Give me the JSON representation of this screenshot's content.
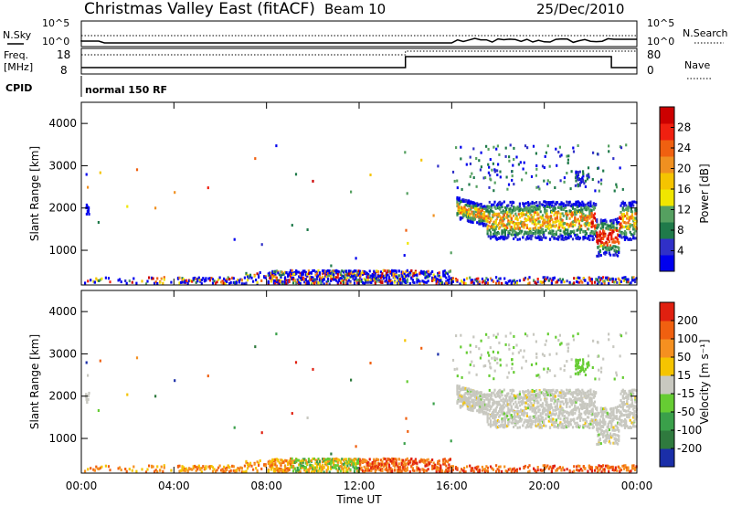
{
  "header": {
    "title": "Christmas Valley East (fitACF)",
    "beam": "Beam 10",
    "date": "25/Dec/2010"
  },
  "top_panels": {
    "nsky_label": "N.Sky",
    "nsky_ticks": [
      "10^5",
      "10^0"
    ],
    "nsearch_label": "N.Search",
    "nsearch_ticks": [
      "10^5",
      "10^0"
    ],
    "freq_label": "Freq.",
    "freq_unit": "[MHz]",
    "freq_ticks": [
      "18",
      "8"
    ],
    "nave_label": "Nave",
    "nave_ticks": [
      "80",
      "0"
    ],
    "cpid_label": "CPID",
    "cpid_value": "normal 150 RF"
  },
  "chart_data": [
    {
      "type": "heatmap",
      "title": "",
      "xlabel": "",
      "ylabel": "Slant Range [km]",
      "x_range_hours": [
        0,
        24
      ],
      "y_range_km": [
        180,
        4500
      ],
      "y_ticks": [
        "4000",
        "3000",
        "2000",
        "1000"
      ],
      "y_tick_values": [
        4000,
        3000,
        2000,
        1000
      ],
      "colorbar": {
        "label": "Power [dB]",
        "ticks": [
          "28",
          "24",
          "20",
          "16",
          "12",
          "8",
          "4"
        ],
        "tick_values": [
          28,
          24,
          20,
          16,
          12,
          8,
          4
        ],
        "colors": [
          "#0000ee",
          "#3030c8",
          "#1f7a4a",
          "#55a060",
          "#f0e600",
          "#f5c400",
          "#f09020",
          "#f06010",
          "#f02010",
          "#cc0000"
        ]
      },
      "features": [
        {
          "name": "ground scatter band",
          "t_start": 0,
          "t_end": 24,
          "range_km": [
            180,
            400
          ]
        },
        {
          "name": "ionospheric scatter",
          "t_start": 16.2,
          "t_end": 24,
          "range_km": [
            1000,
            2200
          ]
        }
      ]
    },
    {
      "type": "heatmap",
      "title": "",
      "xlabel": "Time UT",
      "ylabel": "Slant Range [km]",
      "x_range_hours": [
        0,
        24
      ],
      "y_range_km": [
        180,
        4500
      ],
      "x_ticks": [
        "00:00",
        "04:00",
        "08:00",
        "12:00",
        "16:00",
        "20:00",
        "00:00"
      ],
      "x_tick_hours": [
        0,
        4,
        8,
        12,
        16,
        20,
        24
      ],
      "y_ticks": [
        "4000",
        "3000",
        "2000",
        "1000"
      ],
      "y_tick_values": [
        4000,
        3000,
        2000,
        1000
      ],
      "colorbar": {
        "label": "Velocity [m s⁻¹]",
        "ticks": [
          "200",
          "100",
          "50",
          "15",
          "-15",
          "-50",
          "-100",
          "-200"
        ],
        "tick_values": [
          200,
          100,
          50,
          15,
          -15,
          -50,
          -100,
          -200
        ],
        "colors": [
          "#1a2ea8",
          "#2f7a3e",
          "#3aa04a",
          "#66cc33",
          "#c8c8c0",
          "#f5c400",
          "#f59020",
          "#f06010",
          "#e02010"
        ]
      }
    }
  ]
}
